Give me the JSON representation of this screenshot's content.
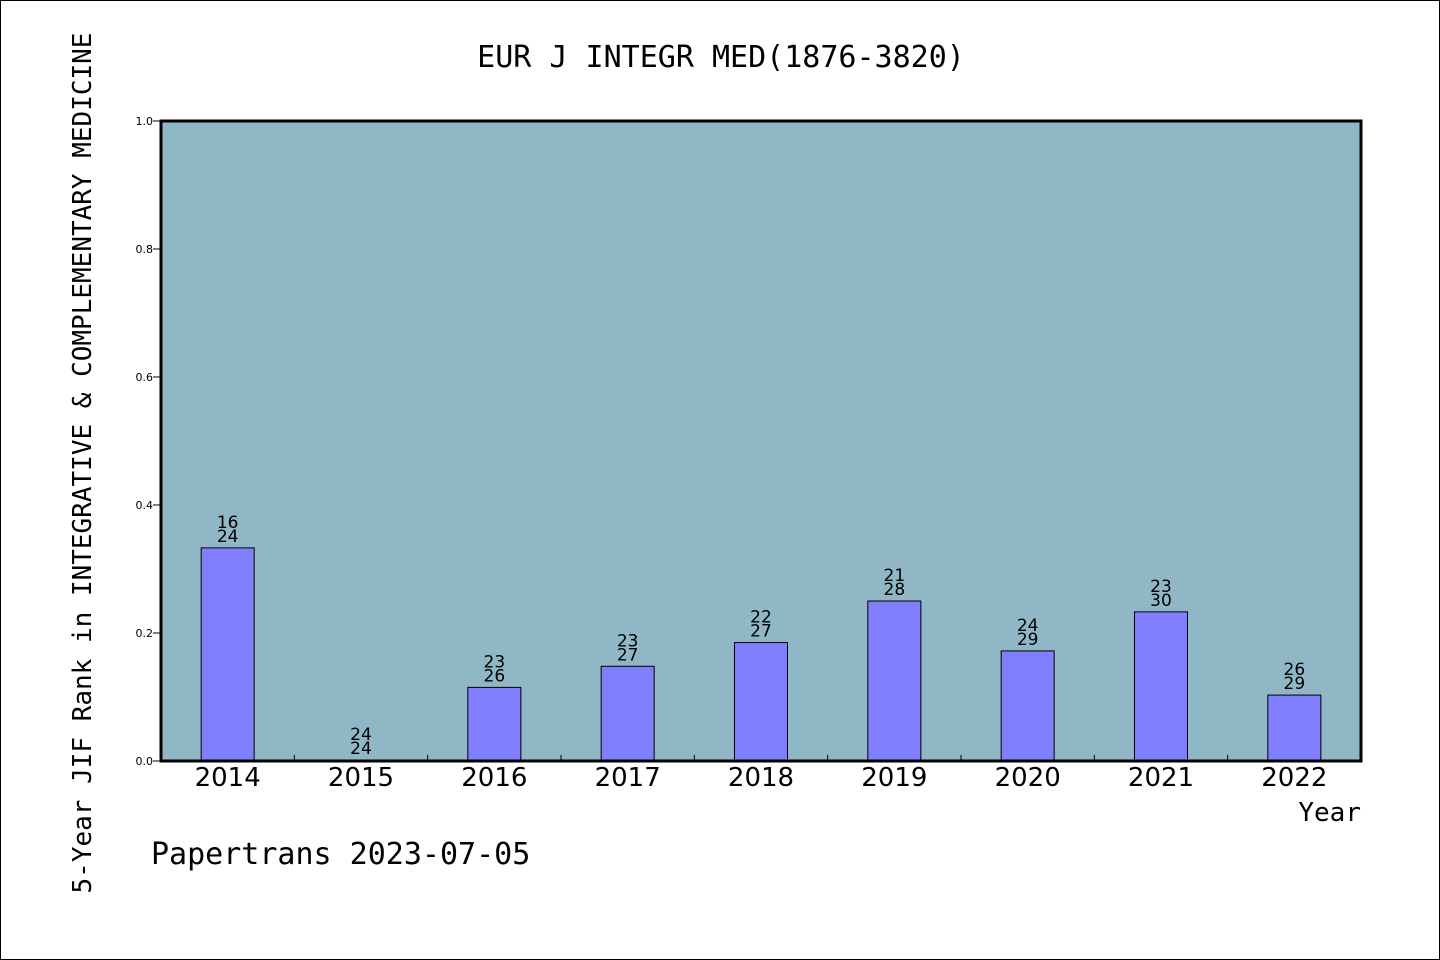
{
  "chart_data": {
    "type": "bar",
    "title": "EUR J INTEGR MED(1876-3820)",
    "xlabel": "Year",
    "ylabel": "5-Year JIF Rank in INTEGRATIVE & COMPLEMENTARY MEDICINE",
    "ylim": [
      0,
      1.0
    ],
    "yticks": [
      "0.0",
      "0.2",
      "0.4",
      "0.6",
      "0.8",
      "1.0"
    ],
    "grid": false,
    "categories": [
      "2014",
      "2015",
      "2016",
      "2017",
      "2018",
      "2019",
      "2020",
      "2021",
      "2022"
    ],
    "values": [
      0.333,
      0.0,
      0.115,
      0.148,
      0.185,
      0.25,
      0.172,
      0.233,
      0.103
    ],
    "labels_top": [
      "16",
      "24",
      "23",
      "23",
      "22",
      "21",
      "24",
      "23",
      "26"
    ],
    "labels_bottom": [
      "24",
      "24",
      "26",
      "27",
      "27",
      "28",
      "29",
      "30",
      "29"
    ],
    "colors": {
      "plot_background": "#8fb7c5",
      "bar_fill": "#8080ff",
      "bar_stroke": "#000000"
    }
  },
  "footer": {
    "watermark": "Papertrans 2023-07-05"
  }
}
